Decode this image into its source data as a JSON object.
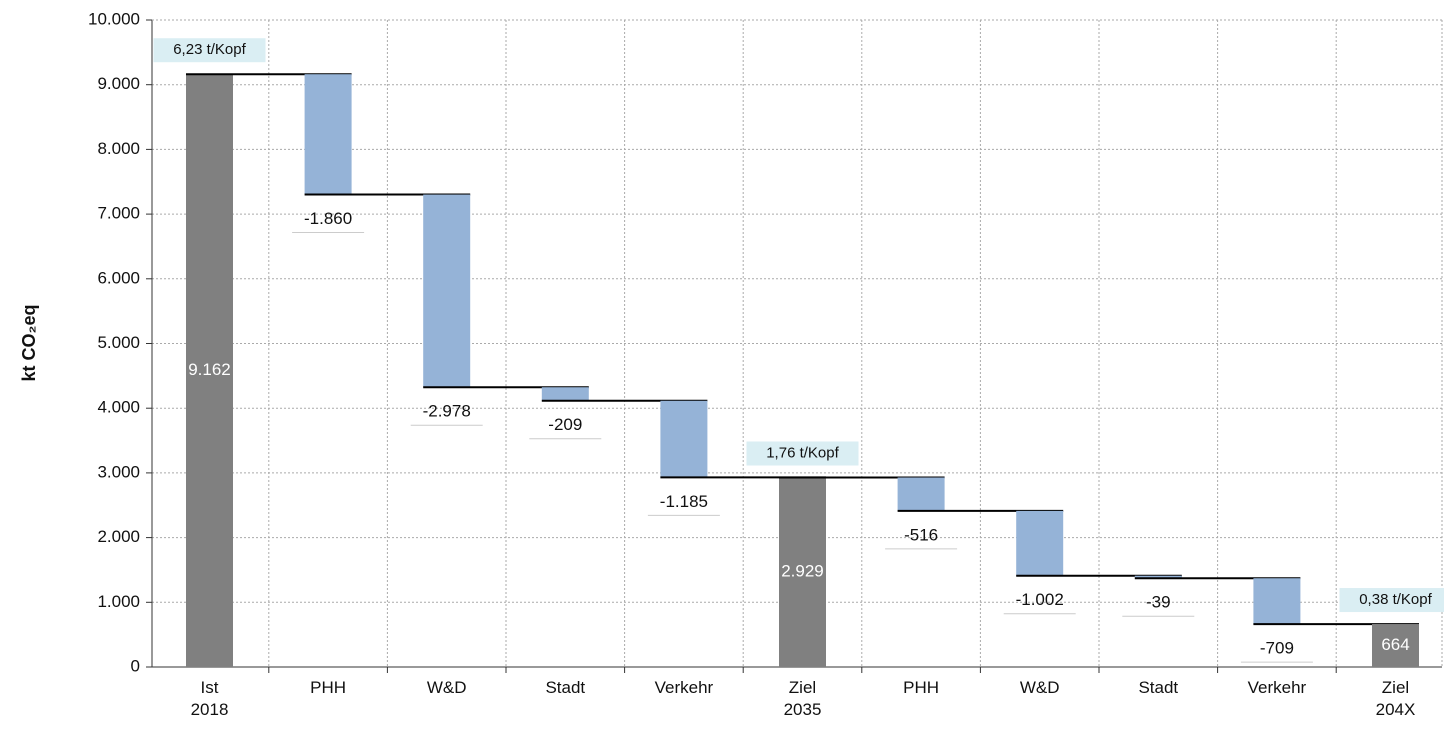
{
  "chart_data": {
    "type": "waterfall",
    "y_label": "kt CO₂eq",
    "categories": [
      "Ist\n2018",
      "PHH",
      "W&D",
      "Stadt",
      "Verkehr",
      "Ziel\n2035",
      "PHH",
      "W&D",
      "Stadt",
      "Verkehr",
      "Ziel\n204X"
    ],
    "measure": [
      "total",
      "relative",
      "relative",
      "relative",
      "relative",
      "total",
      "relative",
      "relative",
      "relative",
      "relative",
      "total"
    ],
    "values": [
      9162,
      -1860,
      -2978,
      -209,
      -1185,
      2929,
      -516,
      -1002,
      -39,
      -709,
      664
    ],
    "value_labels": [
      "9.162",
      "-1.860",
      "-2.978",
      "-209",
      "-1.185",
      "2.929",
      "-516",
      "-1.002",
      "-39",
      "-709",
      "664"
    ],
    "annotations": [
      "6,23 t/Kopf",
      "1,76 t/Kopf",
      "0,38 t/Kopf"
    ],
    "total_color": "#808080",
    "delta_color": "#95b3d7",
    "ylim": [
      0,
      10000
    ],
    "yticks": [
      0,
      {
        "value": 1000,
        "label": "1.000"
      },
      {
        "value": 2000,
        "label": "2.000"
      },
      {
        "value": 3000,
        "label": "3.000"
      },
      {
        "value": 4000,
        "label": "4.000"
      },
      {
        "value": 5000,
        "label": "5.000"
      },
      {
        "value": 6000,
        "label": "6.000"
      },
      {
        "value": 7000,
        "label": "7.000"
      },
      {
        "value": 8000,
        "label": "8.000"
      },
      {
        "value": 9000,
        "label": "9.000"
      },
      {
        "value": 10000,
        "label": "10.000"
      }
    ],
    "grid": true
  }
}
